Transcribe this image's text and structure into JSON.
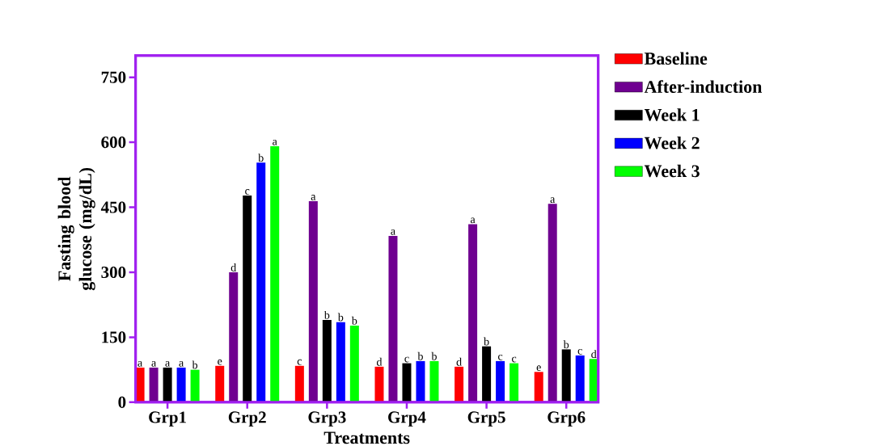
{
  "chart_data": {
    "type": "bar",
    "xlabel": "Treatments",
    "ylabel": "Fasting blood glucose (mg/dL)",
    "categories": [
      "Grp1",
      "Grp2",
      "Grp3",
      "Grp4",
      "Grp5",
      "Grp6"
    ],
    "series": [
      {
        "name": "Baseline",
        "color": "#ff0000",
        "values": [
          80,
          84,
          84,
          82,
          82,
          70
        ],
        "value_labels": [
          "a",
          "e",
          "c",
          "d",
          "d",
          "e"
        ]
      },
      {
        "name": "After-induction",
        "color": "#6f0090",
        "values": [
          80,
          300,
          464,
          384,
          411,
          458
        ],
        "value_labels": [
          "a",
          "d",
          "a",
          "a",
          "a",
          "a"
        ]
      },
      {
        "name": "Week 1",
        "color": "#000000",
        "values": [
          80,
          477,
          190,
          90,
          129,
          122
        ],
        "value_labels": [
          "a",
          "c",
          "b",
          "c",
          "b",
          "b"
        ]
      },
      {
        "name": "Week 2",
        "color": "#0000ff",
        "values": [
          80,
          553,
          185,
          95,
          95,
          108
        ],
        "value_labels": [
          "a",
          "b",
          "b",
          "b",
          "c",
          "c"
        ]
      },
      {
        "name": "Week 3",
        "color": "#00ff00",
        "values": [
          75,
          591,
          177,
          95,
          90,
          100
        ],
        "value_labels": [
          "b",
          "a",
          "b",
          "b",
          "c",
          "d"
        ]
      }
    ],
    "ylim": [
      0,
      800
    ],
    "yticks": [
      0,
      150,
      300,
      450,
      600,
      750
    ],
    "legend": "right"
  }
}
